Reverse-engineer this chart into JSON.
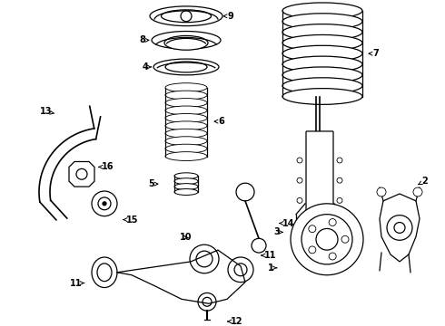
{
  "bg_color": "#ffffff",
  "line_color": "#000000",
  "fig_width": 4.9,
  "fig_height": 3.6,
  "dpi": 100,
  "font_size": 7,
  "font_weight": "bold"
}
